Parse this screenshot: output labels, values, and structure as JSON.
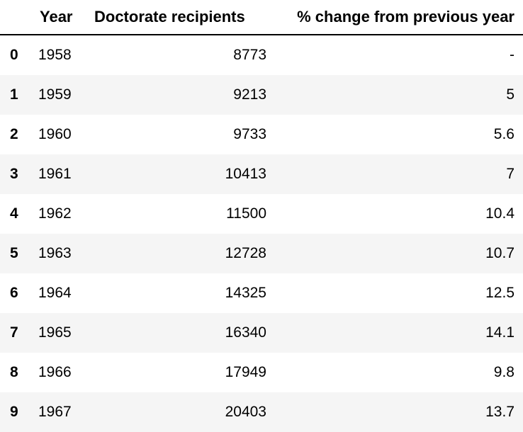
{
  "table": {
    "columns": {
      "index": "",
      "year": "Year",
      "doctorate": "Doctorate recipients",
      "pct_change": "% change from previous year"
    },
    "rows": [
      {
        "index": "0",
        "year": "1958",
        "doctorate": "8773",
        "pct_change": "-"
      },
      {
        "index": "1",
        "year": "1959",
        "doctorate": "9213",
        "pct_change": "5"
      },
      {
        "index": "2",
        "year": "1960",
        "doctorate": "9733",
        "pct_change": "5.6"
      },
      {
        "index": "3",
        "year": "1961",
        "doctorate": "10413",
        "pct_change": "7"
      },
      {
        "index": "4",
        "year": "1962",
        "doctorate": "11500",
        "pct_change": "10.4"
      },
      {
        "index": "5",
        "year": "1963",
        "doctorate": "12728",
        "pct_change": "10.7"
      },
      {
        "index": "6",
        "year": "1964",
        "doctorate": "14325",
        "pct_change": "12.5"
      },
      {
        "index": "7",
        "year": "1965",
        "doctorate": "16340",
        "pct_change": "14.1"
      },
      {
        "index": "8",
        "year": "1966",
        "doctorate": "17949",
        "pct_change": "9.8"
      },
      {
        "index": "9",
        "year": "1967",
        "doctorate": "20403",
        "pct_change": "13.7"
      }
    ]
  }
}
